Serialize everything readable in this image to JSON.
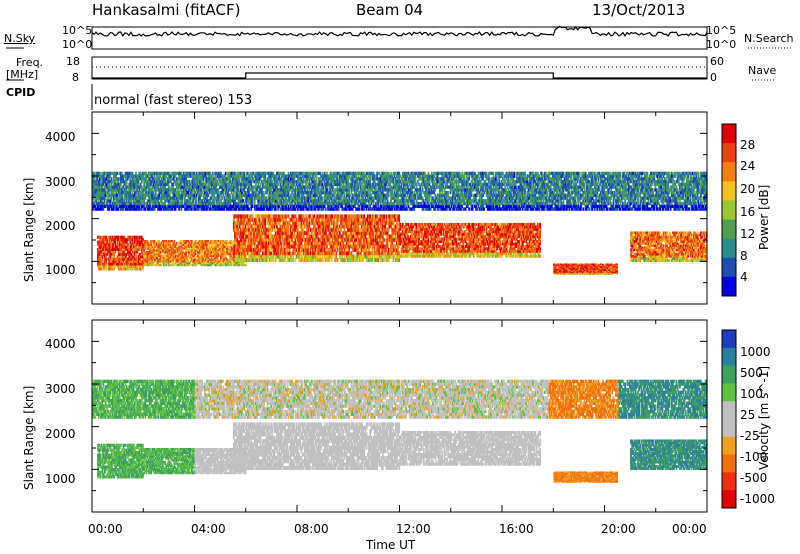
{
  "header": {
    "station": "Hankasalmi (fitACF)",
    "beam": "Beam 04",
    "date": "13/Oct/2013"
  },
  "side_labels": {
    "nsky": "N.Sky",
    "nsearch": "N.Search",
    "freq": "Freq.",
    "freq_unit": "[MHz]",
    "nave": "Nave",
    "cpid": "CPID",
    "cpid_value": "normal (fast stereo) 153"
  },
  "noise_axis": {
    "ticks": [
      "10^5",
      "10^0"
    ]
  },
  "freq_axis": {
    "left_ticks": [
      "18",
      "8"
    ],
    "right_ticks": [
      "60",
      "0"
    ]
  },
  "x_axis": {
    "label": "Time UT",
    "ticks": [
      "00:00",
      "04:00",
      "08:00",
      "12:00",
      "16:00",
      "20:00",
      "00:00"
    ]
  },
  "power_panel": {
    "ylabel": "Slant Range [km]",
    "yticks": [
      "1000",
      "2000",
      "3000",
      "4000"
    ],
    "colorbar_label": "Power [dB]",
    "colorbar_ticks": [
      "4",
      "8",
      "12",
      "16",
      "20",
      "24",
      "28"
    ],
    "colors": [
      "#0000e0",
      "#1e4fb0",
      "#2e8b8b",
      "#50a050",
      "#9bc830",
      "#f0c020",
      "#f08010",
      "#f04010",
      "#e00000"
    ]
  },
  "velocity_panel": {
    "ylabel": "Slant Range [km]",
    "yticks": [
      "1000",
      "2000",
      "3000",
      "4000"
    ],
    "colorbar_label": "Velocity [m s^-1]",
    "colorbar_ticks": [
      "1000",
      "500",
      "100",
      "25",
      "-25",
      "-100",
      "-500",
      "-1000"
    ],
    "colors": [
      "#1e3cc0",
      "#2e7f9f",
      "#3da060",
      "#60c040",
      "#c0c0c0",
      "#c0c0c0",
      "#f0a020",
      "#f07010",
      "#f03010",
      "#e00000"
    ]
  },
  "chart_data": {
    "type": "heatmap",
    "x_range_hours": [
      0,
      24
    ],
    "y_range_km": [
      0,
      4500
    ],
    "power_bands": [
      {
        "t0": 0.2,
        "t1": 2.0,
        "r0": 800,
        "r1": 1600,
        "level": 28
      },
      {
        "t0": 2.0,
        "t1": 6.0,
        "r0": 900,
        "r1": 1500,
        "level": 24
      },
      {
        "t0": 5.5,
        "t1": 12.0,
        "r0": 1000,
        "r1": 2100,
        "level": 26
      },
      {
        "t0": 12.0,
        "t1": 17.5,
        "r0": 1100,
        "r1": 1900,
        "level": 27
      },
      {
        "t0": 18.0,
        "t1": 20.5,
        "r0": 700,
        "r1": 950,
        "level": 28
      },
      {
        "t0": 21.0,
        "t1": 24.0,
        "r0": 1000,
        "r1": 1700,
        "level": 25
      },
      {
        "t0": 0.0,
        "t1": 24.0,
        "r0": 2200,
        "r1": 3100,
        "level": 10
      }
    ]
  }
}
